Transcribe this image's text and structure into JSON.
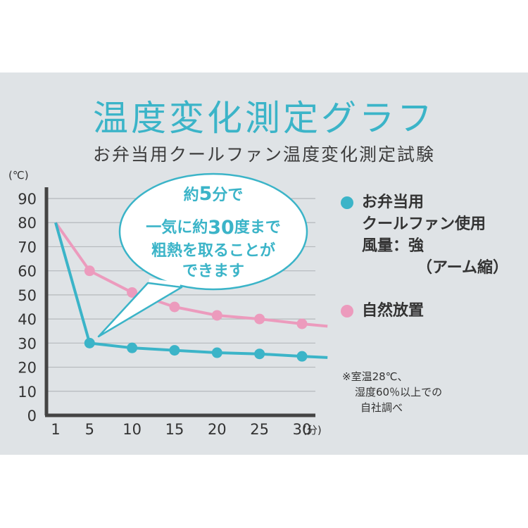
{
  "title": "温度変化測定グラフ",
  "subtitle": "お弁当用クールファン温度変化測定試験",
  "chart_data": {
    "type": "line",
    "y_unit": "(℃)",
    "x_unit": "(分)",
    "ylim": [
      0,
      90
    ],
    "xlim": [
      1,
      33
    ],
    "y_ticks": [
      "0",
      "10",
      "20",
      "30",
      "40",
      "50",
      "60",
      "70",
      "80",
      "90"
    ],
    "x_ticks": [
      "1",
      "5",
      "10",
      "15",
      "20",
      "25",
      "30"
    ],
    "x_tick_values": [
      1,
      5,
      10,
      15,
      20,
      25,
      30
    ],
    "grid": true,
    "legend_position": "right",
    "series": [
      {
        "name": "お弁当用クールファン使用 風量：強 （アーム縮）",
        "color": "#3bb4c8",
        "x": [
          1,
          5,
          10,
          15,
          20,
          25,
          30
        ],
        "y": [
          80,
          30,
          28,
          27,
          26,
          25.5,
          24.5
        ],
        "end_x": 33,
        "end_y": 24
      },
      {
        "name": "自然放置",
        "color": "#ec9bbd",
        "x": [
          1,
          5,
          10,
          15,
          20,
          25,
          30
        ],
        "y": [
          80,
          60,
          51,
          45,
          41.5,
          40,
          38
        ],
        "end_x": 33,
        "end_y": 37
      }
    ],
    "annotation": {
      "line1_a": "約",
      "line1_b": "5",
      "line1_c": "分で",
      "line2_a": "一気に約",
      "line2_b": "30",
      "line2_c": "度まで",
      "line3": "粗熱を取ることが",
      "line4": "できます"
    }
  },
  "legend": {
    "blue_line1": "お弁当用",
    "blue_line2": "クールファン使用",
    "blue_line3": "風量：強",
    "blue_line4": "（アーム縮）",
    "pink_line1": "自然放置"
  },
  "note": {
    "line1": "※室温28℃、",
    "line2": "湿度60％以上での",
    "line3": "自社調べ"
  }
}
